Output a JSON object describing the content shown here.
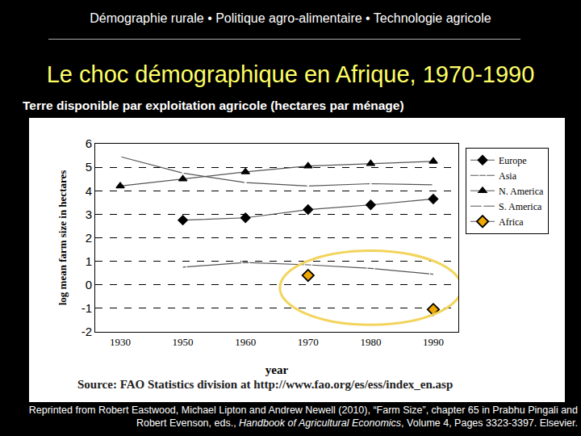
{
  "slide": {
    "header": "Démographie rurale • Politique agro-alimentaire • Technologie agricole",
    "title": "Le choc démographique en Afrique, 1970-1990",
    "subtitle": "Terre disponible par exploitation agricole (hectares par ménage)",
    "source": "Source: FAO Statistics division at http://www.fao.org/es/ess/index_en.asp",
    "reference": {
      "before": "Reprinted from Robert Eastwood, Michael Lipton and Andrew Newell (2010), “Farm Size”, chapter 65 in Prabhu Pingali and Robert Evenson, eds., ",
      "italic": "Handbook of Agricultural Economics",
      "after": ", Volume 4, Pages 3323-3397. Elsevier."
    }
  },
  "chart_data": {
    "type": "line",
    "x_label": "year",
    "y_label": "log mean farm size in hectares",
    "categories": [
      "1930",
      "1950",
      "1960",
      "1970",
      "1980",
      "1990"
    ],
    "series": [
      {
        "name": "Europe",
        "color": "#000000",
        "marker": "diamond",
        "values": [
          null,
          2.75,
          2.85,
          3.2,
          3.4,
          3.65
        ]
      },
      {
        "name": "Asia",
        "color": "#000000",
        "marker": "square-open",
        "values": [
          null,
          0.75,
          0.95,
          0.85,
          0.7,
          0.45
        ]
      },
      {
        "name": "N. America",
        "color": "#000000",
        "marker": "triangle-up",
        "values": [
          4.2,
          4.5,
          4.8,
          5.05,
          5.15,
          5.25
        ]
      },
      {
        "name": "S. America",
        "color": "#000000",
        "marker": "x-thin-open",
        "values": [
          5.45,
          4.75,
          4.35,
          4.2,
          4.3,
          4.25
        ]
      },
      {
        "name": "Africa",
        "color": "#f0a800",
        "marker": "diamond",
        "values": [
          null,
          null,
          null,
          0.4,
          null,
          -1.05
        ]
      }
    ],
    "ylim": [
      -2,
      6
    ],
    "yticks": [
      -2,
      -1,
      0,
      1,
      2,
      3,
      4,
      5,
      6
    ],
    "grid": true,
    "legend": "right"
  }
}
